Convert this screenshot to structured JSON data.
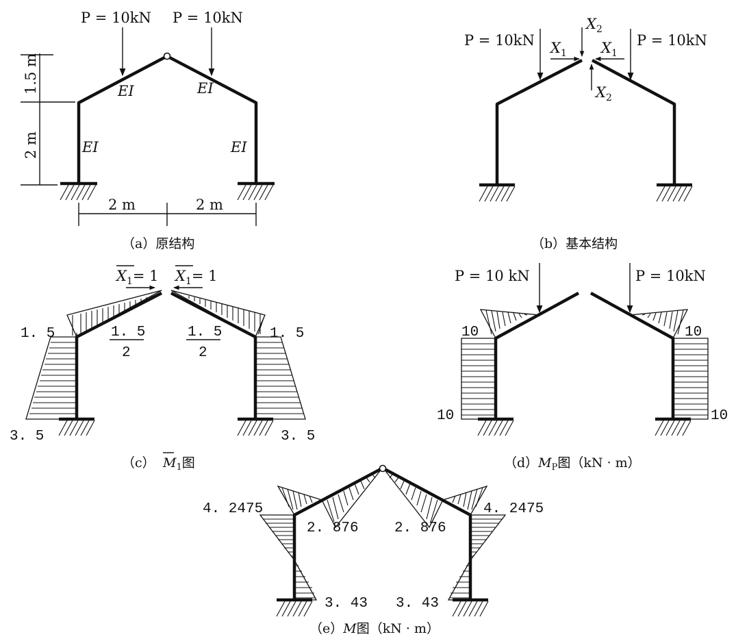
{
  "load_label": "P = 10kN",
  "load_label_spaced": "P = 10 kN",
  "ei": "EI",
  "dim_left_top": "1.5 m",
  "dim_left_bottom": "2 m",
  "dim_bottom": "2 m",
  "x1": "X",
  "x1_sub": "1",
  "x2": "X",
  "x2_sub": "2",
  "xbar_eq": "= 1",
  "c_values": {
    "top": "1. 5",
    "frac_num": "1. 5",
    "frac_den": "2",
    "bottom": "3. 5"
  },
  "d_values": {
    "ten": "10"
  },
  "e_values": {
    "top": "4. 2475",
    "mid": "2. 876",
    "bottom": "3. 43"
  },
  "captions": {
    "a": "（a）原结构",
    "b": "（b）基本结构",
    "c_pre": "（c）",
    "c_m": "M",
    "c_sub": "1",
    "c_post": "图",
    "d_pre": "（d）",
    "d_m": "M",
    "d_sub": "P",
    "d_post": "图（kN · m）",
    "e_pre": "（e）",
    "e_m": "M",
    "e_post": "图（kN · m）"
  }
}
